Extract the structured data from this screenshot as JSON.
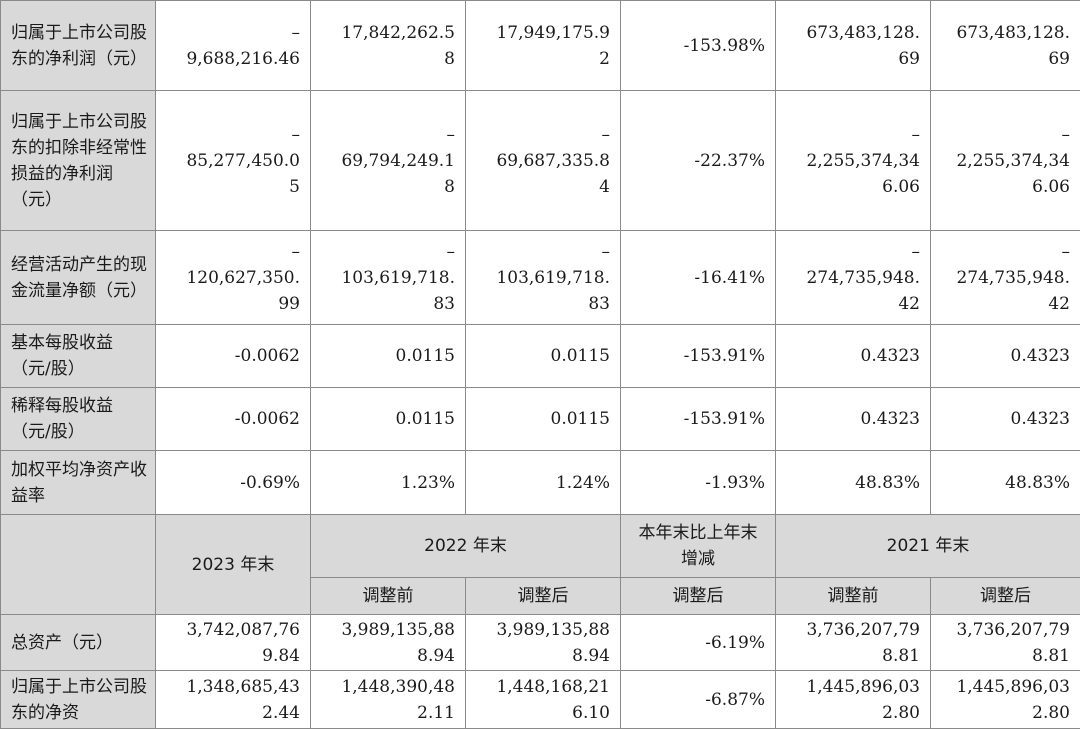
{
  "rows_top": [
    {
      "label": "归属于上市公司股东的净利润（元）",
      "c2023": "–\n9,688,216.46",
      "c2022_before": "17,842,262.5\n8",
      "c2022_after": "17,949,175.9\n2",
      "change": "-153.98%",
      "c2021_before": "673,483,128.\n69",
      "c2021_after": "673,483,128.\n69"
    },
    {
      "label": "归属于上市公司股东的扣除非经常性损益的净利润（元）",
      "c2023": "–\n85,277,450.0\n5",
      "c2022_before": "–\n69,794,249.1\n8",
      "c2022_after": "–\n69,687,335.8\n4",
      "change": "-22.37%",
      "c2021_before": "–\n2,255,374,34\n6.06",
      "c2021_after": "–\n2,255,374,34\n6.06"
    },
    {
      "label": "经营活动产生的现金流量净额（元）",
      "c2023": "–\n120,627,350.\n99",
      "c2022_before": "–\n103,619,718.\n83",
      "c2022_after": "–\n103,619,718.\n83",
      "change": "-16.41%",
      "c2021_before": "–\n274,735,948.\n42",
      "c2021_after": "–\n274,735,948.\n42"
    },
    {
      "label": "基本每股收益（元/股）",
      "c2023": "-0.0062",
      "c2022_before": "0.0115",
      "c2022_after": "0.0115",
      "change": "-153.91%",
      "c2021_before": "0.4323",
      "c2021_after": "0.4323"
    },
    {
      "label": "稀释每股收益（元/股）",
      "c2023": "-0.0062",
      "c2022_before": "0.0115",
      "c2022_after": "0.0115",
      "change": "-153.91%",
      "c2021_before": "0.4323",
      "c2021_after": "0.4323"
    },
    {
      "label": "加权平均净资产收益率",
      "c2023": "-0.69%",
      "c2022_before": "1.23%",
      "c2022_after": "1.24%",
      "change": "-1.93%",
      "c2021_before": "48.83%",
      "c2021_after": "48.83%"
    }
  ],
  "header": {
    "y2023": "2023 年末",
    "y2022": "2022 年末",
    "change": "本年末比上年末增减",
    "y2021": "2021 年末",
    "before": "调整前",
    "after": "调整后",
    "after_change": "调整后"
  },
  "rows_bottom": [
    {
      "label": "总资产（元）",
      "c2023": "3,742,087,76\n9.84",
      "c2022_before": "3,989,135,88\n8.94",
      "c2022_after": "3,989,135,88\n8.94",
      "change": "-6.19%",
      "c2021_before": "3,736,207,79\n8.81",
      "c2021_after": "3,736,207,79\n8.81"
    },
    {
      "label": "归属于上市公司股东的净资",
      "c2023": "1,348,685,43\n2.44",
      "c2022_before": "1,448,390,48\n2.11",
      "c2022_after": "1,448,168,21\n6.10",
      "change": "-6.87%",
      "c2021_before": "1,445,896,03\n2.80",
      "c2021_after": "1,445,896,03\n2.80"
    }
  ]
}
